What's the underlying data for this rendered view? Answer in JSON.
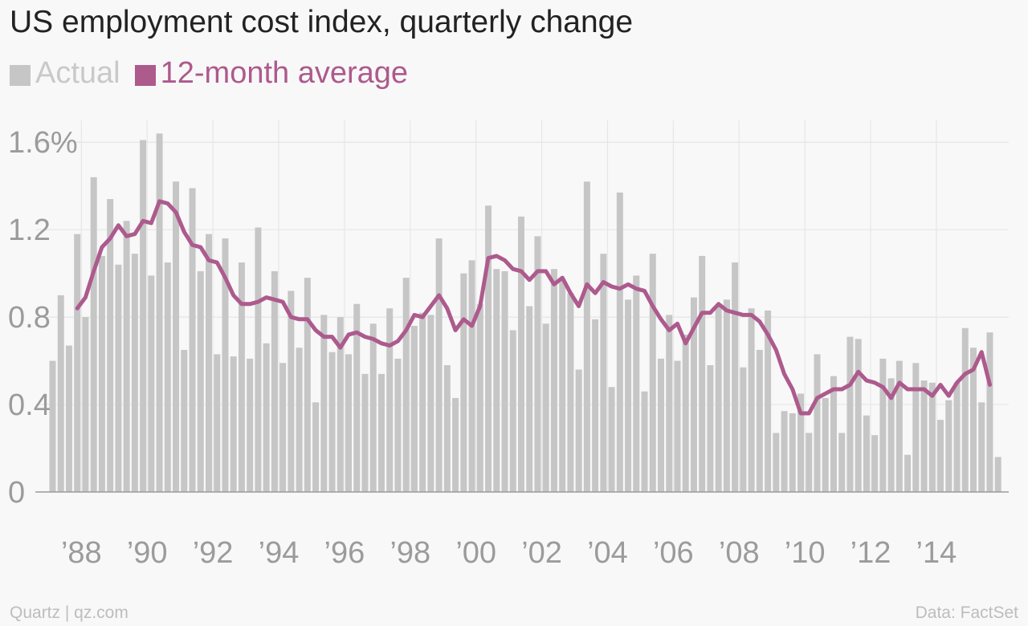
{
  "chart_data": {
    "type": "bar",
    "title": "US employment cost index, quarterly change",
    "series": [
      {
        "name": "Actual",
        "type": "bar",
        "color": "#c6c6c6",
        "start_year": 1987,
        "start_quarter": 1,
        "values": [
          0.6,
          0.9,
          0.67,
          1.18,
          0.8,
          1.44,
          1.08,
          1.34,
          1.04,
          1.24,
          1.09,
          1.61,
          0.99,
          1.64,
          1.05,
          1.42,
          0.65,
          1.39,
          1.01,
          1.18,
          0.63,
          1.16,
          0.62,
          1.05,
          0.61,
          1.21,
          0.68,
          1.01,
          0.59,
          0.92,
          0.66,
          0.98,
          0.41,
          0.81,
          0.64,
          0.8,
          0.63,
          0.86,
          0.54,
          0.77,
          0.54,
          0.84,
          0.61,
          0.98,
          0.76,
          0.82,
          0.81,
          1.16,
          0.58,
          0.43,
          1.0,
          1.06,
          0.86,
          1.31,
          1.02,
          1.01,
          0.74,
          1.26,
          0.85,
          1.17,
          0.77,
          1.02,
          0.97,
          0.91,
          0.56,
          1.42,
          0.79,
          1.09,
          0.48,
          1.37,
          0.88,
          0.99,
          0.46,
          1.09,
          0.61,
          0.81,
          0.6,
          0.72,
          0.89,
          1.08,
          0.58,
          0.85,
          0.88,
          1.05,
          0.57,
          0.84,
          0.65,
          0.83,
          0.27,
          0.37,
          0.36,
          0.45,
          0.27,
          0.63,
          0.43,
          0.53,
          0.27,
          0.71,
          0.7,
          0.35,
          0.26,
          0.61,
          0.52,
          0.6,
          0.17,
          0.59,
          0.51,
          0.5,
          0.33,
          0.42,
          0.5,
          0.75,
          0.66,
          0.41,
          0.73,
          0.16
        ]
      },
      {
        "name": "12-month average",
        "type": "line",
        "color": "#ad5a8d",
        "start_year": 1987,
        "start_quarter": 4,
        "values": [
          0.84,
          0.89,
          1.01,
          1.12,
          1.16,
          1.22,
          1.17,
          1.18,
          1.24,
          1.23,
          1.33,
          1.32,
          1.28,
          1.19,
          1.13,
          1.12,
          1.06,
          1.05,
          0.98,
          0.9,
          0.86,
          0.86,
          0.87,
          0.89,
          0.88,
          0.87,
          0.8,
          0.79,
          0.79,
          0.74,
          0.71,
          0.71,
          0.66,
          0.72,
          0.73,
          0.71,
          0.7,
          0.68,
          0.67,
          0.69,
          0.74,
          0.81,
          0.8,
          0.85,
          0.9,
          0.84,
          0.74,
          0.79,
          0.76,
          0.85,
          1.07,
          1.08,
          1.06,
          1.02,
          1.01,
          0.97,
          1.01,
          1.01,
          0.95,
          0.98,
          0.91,
          0.85,
          0.95,
          0.91,
          0.96,
          0.94,
          0.93,
          0.95,
          0.93,
          0.92,
          0.85,
          0.79,
          0.74,
          0.77,
          0.68,
          0.75,
          0.82,
          0.82,
          0.86,
          0.83,
          0.82,
          0.81,
          0.81,
          0.78,
          0.72,
          0.65,
          0.54,
          0.47,
          0.36,
          0.36,
          0.43,
          0.45,
          0.47,
          0.47,
          0.49,
          0.55,
          0.51,
          0.5,
          0.48,
          0.43,
          0.5,
          0.47,
          0.47,
          0.47,
          0.44,
          0.49,
          0.44,
          0.5,
          0.54,
          0.56,
          0.64,
          0.49
        ]
      }
    ],
    "y_ticks": [
      0,
      0.4,
      0.8,
      1.2,
      1.6
    ],
    "y_tick_labels": [
      "0",
      "0.4",
      "0.8",
      "1.2",
      "1.6%"
    ],
    "ylim": [
      0,
      1.7
    ],
    "x_ticks": [
      1988,
      1990,
      1992,
      1994,
      1996,
      1998,
      2000,
      2002,
      2004,
      2006,
      2008,
      2010,
      2012,
      2014
    ],
    "x_tick_labels": [
      "’88",
      "’90",
      "’92",
      "’94",
      "’96",
      "’98",
      "’00",
      "’02",
      "’04",
      "’06",
      "’08",
      "’10",
      "’12",
      "’14"
    ],
    "xlim": [
      1986.6,
      2016.2
    ],
    "grid": true,
    "legend_position": "top-left"
  },
  "footer": {
    "source_left": "Quartz | qz.com",
    "source_right": "Data: FactSet"
  }
}
